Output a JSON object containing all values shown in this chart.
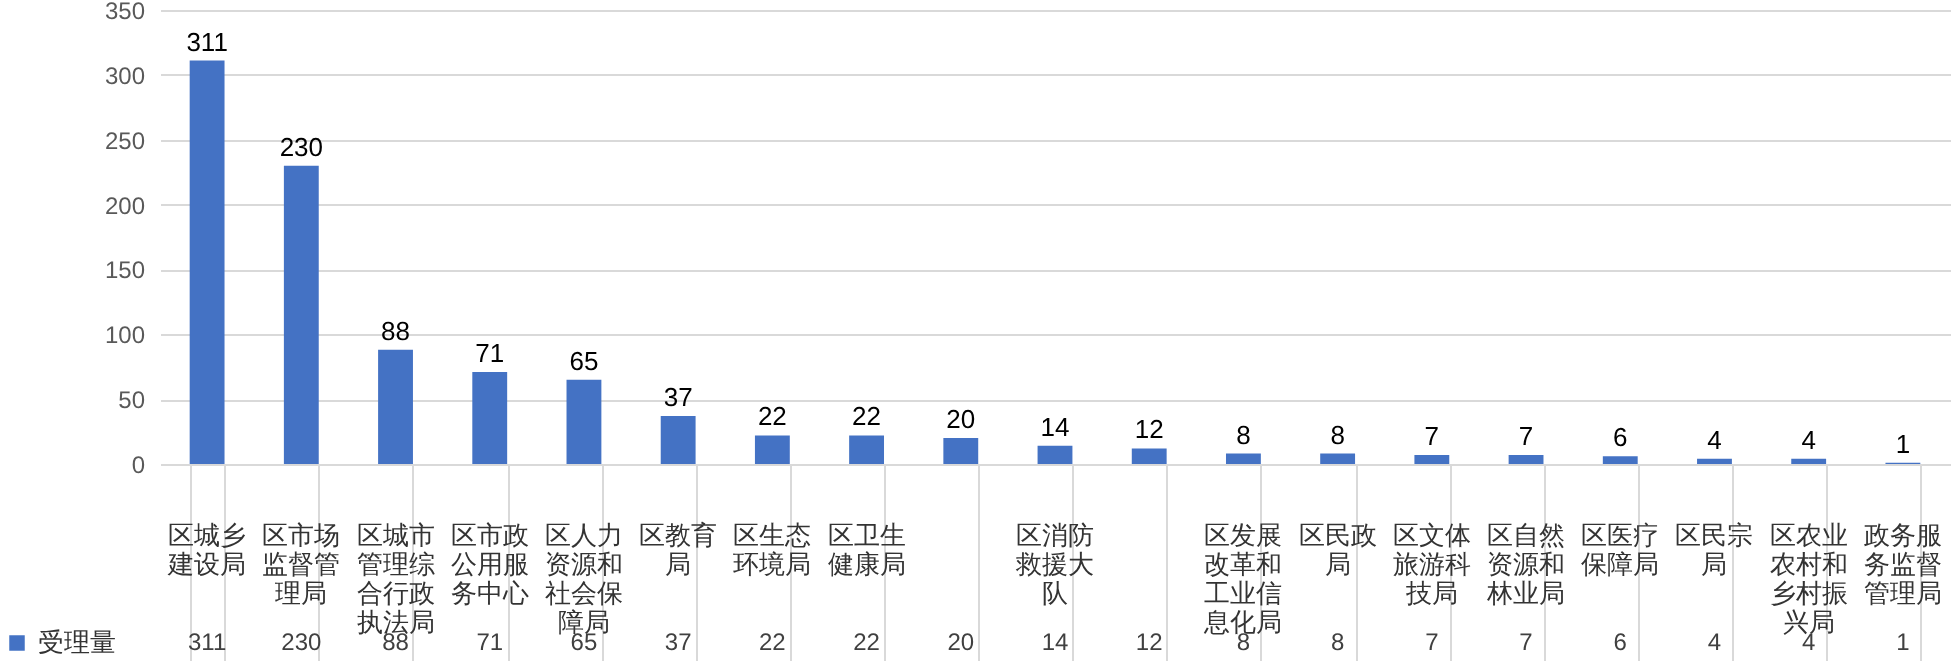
{
  "chart_data": {
    "type": "bar",
    "categories": [
      "区城乡建设局",
      "区市场监督管理局",
      "区城市管理综合行政执法局",
      "区市政公用服务中心",
      "区人力资源和社会保障局",
      "区教育局",
      "区生态环境局",
      "区卫生健康局",
      null,
      "区消防救援大队",
      null,
      "区发展改革和工业信息化局",
      "区民政局",
      "区文体旅游科技局",
      "区自然资源和林业局",
      "区医疗保障局",
      "区民宗局",
      "区农业农村和乡村振兴局",
      "政务服务监督管理局"
    ],
    "series": [
      {
        "name": "受理量",
        "color": "#4472c4",
        "values": [
          311,
          230,
          88,
          71,
          65,
          37,
          22,
          22,
          20,
          14,
          12,
          8,
          8,
          7,
          7,
          6,
          4,
          4,
          1
        ],
        "value_labels": [
          "311",
          "230",
          "88",
          "71",
          "65",
          "37",
          "22",
          "22",
          "20",
          "14",
          "12",
          "8",
          "8",
          "7",
          "7",
          "6",
          "4",
          "4",
          "1"
        ]
      }
    ],
    "ylim": [
      0,
      350
    ],
    "yticks": [
      0,
      50,
      100,
      150,
      200,
      250,
      300,
      350
    ],
    "grid": "y",
    "data_labels": true,
    "legend": "bottom"
  }
}
